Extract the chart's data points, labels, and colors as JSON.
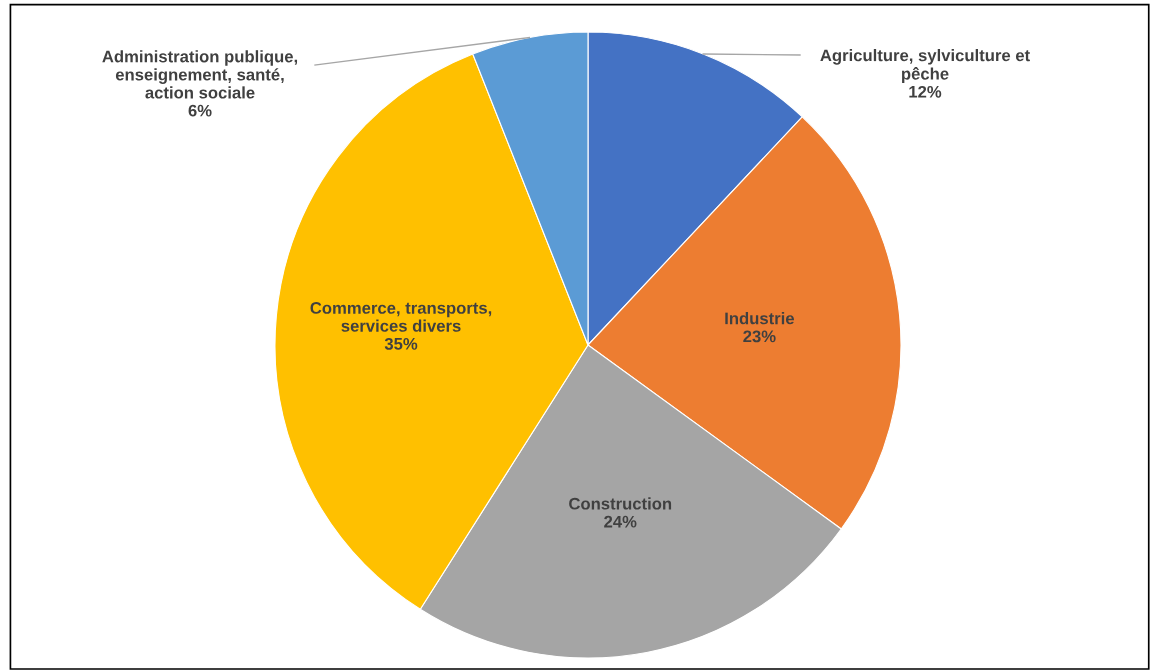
{
  "chart_data": {
    "type": "pie",
    "categories": [
      "Agriculture, sylviculture et\npêche",
      "Industrie",
      "Construction",
      "Commerce, transports,\nservices divers",
      "Administration publique,\nenseignement, santé,\naction sociale"
    ],
    "values": [
      12,
      23,
      24,
      35,
      6
    ],
    "value_labels": [
      "12%",
      "23%",
      "24%",
      "35%",
      "6%"
    ],
    "colors": [
      "#4472c4",
      "#ed7d31",
      "#a5a5a5",
      "#ffc000",
      "#5b9bd5"
    ],
    "legend": false
  }
}
